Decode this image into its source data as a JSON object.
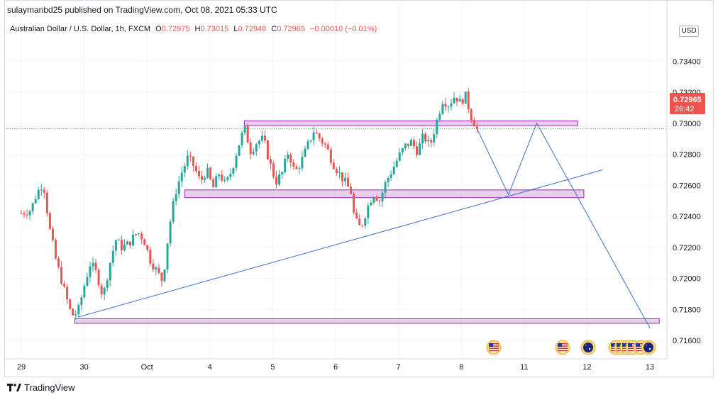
{
  "publish_info": "sulaymanbd25 published on TradingView.com, Oct 08, 2021 05:33 UTC",
  "symbol": {
    "name": "Australian Dollar / U.S. Dollar, 1h, FXCM",
    "o_label": "O",
    "o_value": "0.72975",
    "h_label": "H",
    "h_value": "0.73015",
    "l_label": "L",
    "l_value": "0.72948",
    "c_label": "C",
    "c_value": "0.72965",
    "change": "−0.00010 (−0.01%)"
  },
  "currency": "USD",
  "price_label": {
    "value": "0.72965",
    "countdown": "26:42",
    "color": "#ef5350"
  },
  "footer": {
    "brand": "TradingView"
  },
  "colors": {
    "up": "#26a69a",
    "down": "#ef5350",
    "zone_fill": "#e1bee7",
    "zone_border": "#9c27b0",
    "trendline": "#3d6dcc"
  },
  "chart_data": {
    "type": "candlestick",
    "title": "Australian Dollar / U.S. Dollar, 1h, FXCM",
    "ylim": [
      0.7155,
      0.7345
    ],
    "y_ticks": [
      "0.73400",
      "0.73200",
      "0.73000",
      "0.72800",
      "0.72600",
      "0.72400",
      "0.72200",
      "0.72000",
      "0.71800",
      "0.71600"
    ],
    "x_ticks": [
      "29",
      "30",
      "Oct",
      "4",
      "5",
      "6",
      "7",
      "8",
      "11",
      "12",
      "13"
    ],
    "x_tick_pos": [
      0,
      1,
      2,
      3,
      4,
      5,
      6,
      7,
      8,
      9,
      10
    ],
    "x_range": [
      -0.05,
      10.1
    ],
    "last_price": 0.72965,
    "price_path": [
      [
        0.0,
        0.7242
      ],
      [
        0.15,
        0.7244
      ],
      [
        0.25,
        0.7255
      ],
      [
        0.35,
        0.7262
      ],
      [
        0.45,
        0.7232
      ],
      [
        0.55,
        0.7212
      ],
      [
        0.7,
        0.719
      ],
      [
        0.8,
        0.7176
      ],
      [
        0.9,
        0.7178
      ],
      [
        1.0,
        0.7195
      ],
      [
        1.1,
        0.721
      ],
      [
        1.2,
        0.7203
      ],
      [
        1.3,
        0.7188
      ],
      [
        1.4,
        0.7208
      ],
      [
        1.5,
        0.7225
      ],
      [
        1.6,
        0.722
      ],
      [
        1.7,
        0.7222
      ],
      [
        1.85,
        0.723
      ],
      [
        1.95,
        0.7225
      ],
      [
        2.05,
        0.7212
      ],
      [
        2.15,
        0.7205
      ],
      [
        2.25,
        0.7198
      ],
      [
        2.35,
        0.7232
      ],
      [
        2.45,
        0.7255
      ],
      [
        2.55,
        0.7268
      ],
      [
        2.65,
        0.7278
      ],
      [
        2.75,
        0.7272
      ],
      [
        2.85,
        0.7262
      ],
      [
        2.95,
        0.727
      ],
      [
        3.05,
        0.7258
      ],
      [
        3.15,
        0.7268
      ],
      [
        3.25,
        0.726
      ],
      [
        3.35,
        0.727
      ],
      [
        3.45,
        0.7285
      ],
      [
        3.55,
        0.7297
      ],
      [
        3.65,
        0.7282
      ],
      [
        3.75,
        0.7288
      ],
      [
        3.85,
        0.729
      ],
      [
        3.95,
        0.7275
      ],
      [
        4.05,
        0.7262
      ],
      [
        4.15,
        0.7268
      ],
      [
        4.25,
        0.7282
      ],
      [
        4.35,
        0.7268
      ],
      [
        4.45,
        0.7275
      ],
      [
        4.55,
        0.7285
      ],
      [
        4.65,
        0.7295
      ],
      [
        4.75,
        0.729
      ],
      [
        4.85,
        0.7285
      ],
      [
        4.95,
        0.7275
      ],
      [
        5.05,
        0.7268
      ],
      [
        5.15,
        0.7262
      ],
      [
        5.25,
        0.7255
      ],
      [
        5.3,
        0.7238
      ],
      [
        5.4,
        0.7232
      ],
      [
        5.5,
        0.7245
      ],
      [
        5.6,
        0.7255
      ],
      [
        5.7,
        0.725
      ],
      [
        5.8,
        0.7262
      ],
      [
        5.9,
        0.727
      ],
      [
        6.0,
        0.7278
      ],
      [
        6.1,
        0.7285
      ],
      [
        6.2,
        0.7288
      ],
      [
        6.3,
        0.7282
      ],
      [
        6.4,
        0.7292
      ],
      [
        6.5,
        0.7285
      ],
      [
        6.6,
        0.73
      ],
      [
        6.7,
        0.7315
      ],
      [
        6.8,
        0.7312
      ],
      [
        6.9,
        0.7318
      ],
      [
        7.0,
        0.7312
      ],
      [
        7.05,
        0.732
      ],
      [
        7.15,
        0.7305
      ],
      [
        7.25,
        0.72965
      ]
    ],
    "zones": [
      {
        "name": "resistance-zone",
        "x0": 3.55,
        "x1": 8.85,
        "y0": 0.72985,
        "y1": 0.73015
      },
      {
        "name": "mid-support-zone",
        "x0": 2.6,
        "x1": 8.95,
        "y0": 0.7252,
        "y1": 0.7257
      },
      {
        "name": "bottom-support-zone",
        "x0": 0.85,
        "x1": 10.15,
        "y0": 0.7171,
        "y1": 0.7174
      }
    ],
    "lines": [
      {
        "name": "uptrend-line",
        "points": [
          [
            0.9,
            0.7175
          ],
          [
            9.25,
            0.727
          ]
        ]
      },
      {
        "name": "projection-path",
        "points": [
          [
            7.25,
            0.72965
          ],
          [
            7.75,
            0.7254
          ],
          [
            8.2,
            0.73
          ],
          [
            10.0,
            0.7168
          ]
        ]
      }
    ]
  }
}
